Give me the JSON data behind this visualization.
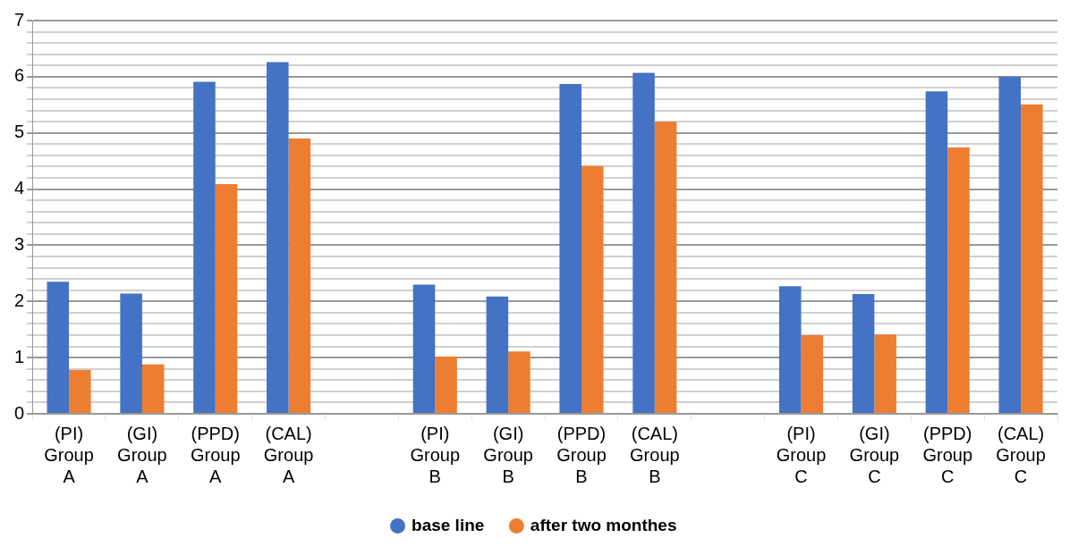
{
  "chart_data": {
    "type": "bar",
    "categories": [
      "(PI) Group A",
      "(GI) Group A",
      "(PPD) Group A",
      "(CAL) Group A",
      null,
      "(PI) Group B",
      "(GI) Group B",
      "(PPD) Group B",
      "(CAL) Group B",
      null,
      "(PI) Group C",
      "(GI) Group C",
      "(PPD) Group C",
      "(CAL) Group C"
    ],
    "series": [
      {
        "name": "base line",
        "color": "#4472c4",
        "values": [
          2.35,
          2.14,
          5.91,
          6.26,
          null,
          2.3,
          2.09,
          5.87,
          6.07,
          null,
          2.27,
          2.13,
          5.74,
          6.0
        ]
      },
      {
        "name": "after two monthes",
        "color": "#ed7d31",
        "values": [
          0.78,
          0.88,
          4.09,
          4.9,
          null,
          1.02,
          1.11,
          4.41,
          5.2,
          null,
          1.4,
          1.41,
          4.74,
          5.51
        ]
      }
    ],
    "ylim": [
      0,
      7
    ],
    "yticks": [
      0,
      {
        "value": 0.2,
        "label": null
      },
      {
        "value": 0.4,
        "label": null
      },
      {
        "value": 0.6,
        "label": null
      },
      {
        "value": 0.8,
        "label": null
      },
      1,
      {
        "value": 1.2,
        "label": null
      },
      {
        "value": 1.4,
        "label": null
      },
      {
        "value": 1.6,
        "label": null
      },
      {
        "value": 1.8,
        "label": null
      },
      2,
      {
        "value": 2.2,
        "label": null
      },
      {
        "value": 2.4,
        "label": null
      },
      {
        "value": 2.6,
        "label": null
      },
      {
        "value": 2.8,
        "label": null
      },
      3,
      {
        "value": 3.2,
        "label": null
      },
      {
        "value": 3.4,
        "label": null
      },
      {
        "value": 3.6,
        "label": null
      },
      {
        "value": 3.8,
        "label": null
      },
      4,
      {
        "value": 4.2,
        "label": null
      },
      {
        "value": 4.4,
        "label": null
      },
      {
        "value": 4.6,
        "label": null
      },
      {
        "value": 4.8,
        "label": null
      },
      5,
      {
        "value": 5.2,
        "label": null
      },
      {
        "value": 5.4,
        "label": null
      },
      {
        "value": 5.6,
        "label": null
      },
      {
        "value": 5.8,
        "label": null
      },
      6,
      {
        "value": 6.2,
        "label": null
      },
      {
        "value": 6.4,
        "label": null
      },
      {
        "value": 6.6,
        "label": null
      },
      {
        "value": 6.8,
        "label": null
      },
      7
    ],
    "grid": true,
    "legend": "bottom"
  }
}
